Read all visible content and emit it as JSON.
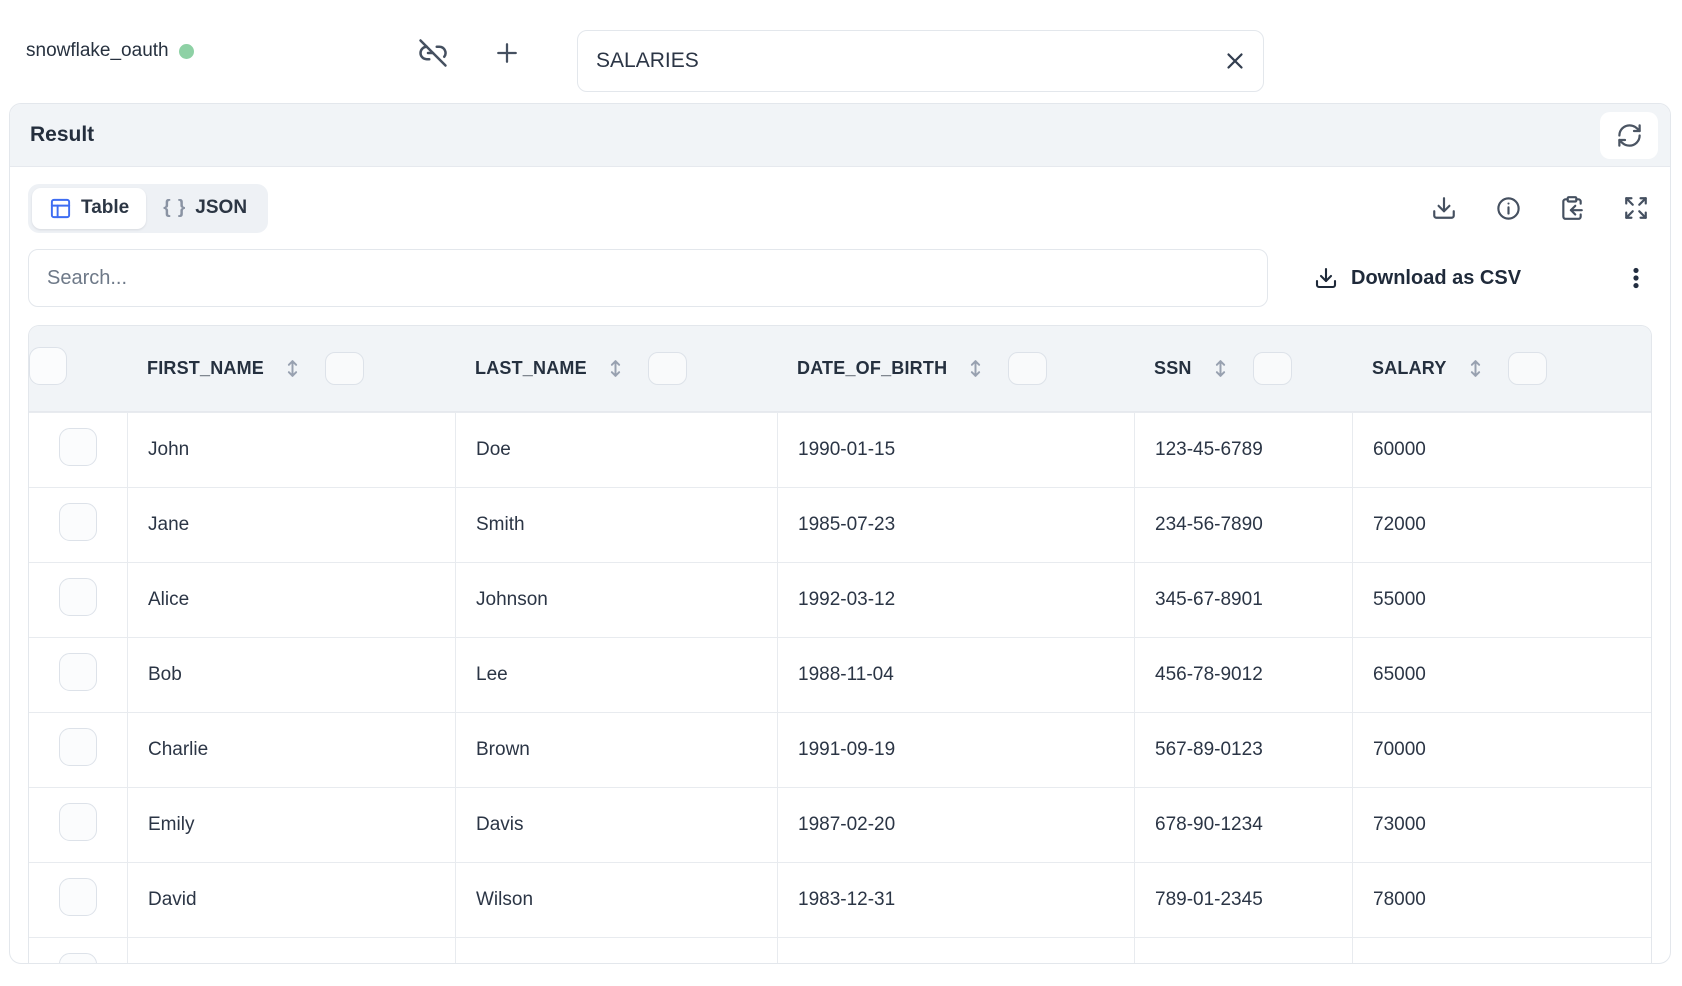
{
  "topbar": {
    "connection_name": "snowflake_oauth",
    "table_input_value": "SALARIES"
  },
  "panel": {
    "title": "Result"
  },
  "view_tabs": {
    "table_label": "Table",
    "json_label": "JSON",
    "json_icon_glyph": "{ }"
  },
  "toolbar": {
    "search_placeholder": "Search...",
    "download_csv_label": "Download as CSV"
  },
  "table": {
    "columns": [
      "FIRST_NAME",
      "LAST_NAME",
      "DATE_OF_BIRTH",
      "SSN",
      "SALARY"
    ],
    "rows": [
      [
        "John",
        "Doe",
        "1990-01-15",
        "123-45-6789",
        "60000"
      ],
      [
        "Jane",
        "Smith",
        "1985-07-23",
        "234-56-7890",
        "72000"
      ],
      [
        "Alice",
        "Johnson",
        "1992-03-12",
        "345-67-8901",
        "55000"
      ],
      [
        "Bob",
        "Lee",
        "1988-11-04",
        "456-78-9012",
        "65000"
      ],
      [
        "Charlie",
        "Brown",
        "1991-09-19",
        "567-89-0123",
        "70000"
      ],
      [
        "Emily",
        "Davis",
        "1987-02-20",
        "678-90-1234",
        "73000"
      ],
      [
        "David",
        "Wilson",
        "1983-12-31",
        "789-01-2345",
        "78000"
      ]
    ]
  },
  "colors": {
    "status_green": "#8ed1a5",
    "accent_blue": "#3e6df2",
    "text_dark": "#2b3545",
    "border": "#e3e7ec",
    "header_bg": "#f1f4f7"
  }
}
